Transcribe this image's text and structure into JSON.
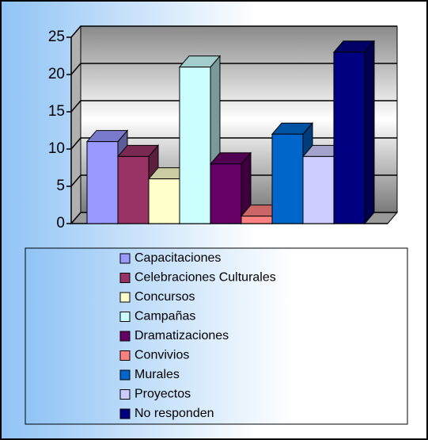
{
  "chart_data": {
    "type": "bar3d",
    "categories": [
      "Capacitaciones",
      "Celebraciones Culturales",
      "Concursos",
      "Campañas",
      "Dramatizaciones",
      "Convivios",
      "Murales",
      "Proyectos",
      "No responden"
    ],
    "values": [
      11,
      9,
      6,
      21,
      8,
      1,
      12,
      9,
      23
    ],
    "colors": [
      "#9999ff",
      "#993366",
      "#ffffcc",
      "#ccffff",
      "#660066",
      "#ff8080",
      "#0066cc",
      "#ccccff",
      "#000080"
    ],
    "ylim": [
      0,
      25
    ],
    "yticks": [
      0,
      5,
      10,
      15,
      20,
      25
    ],
    "grid": true,
    "legend": "bottom"
  }
}
